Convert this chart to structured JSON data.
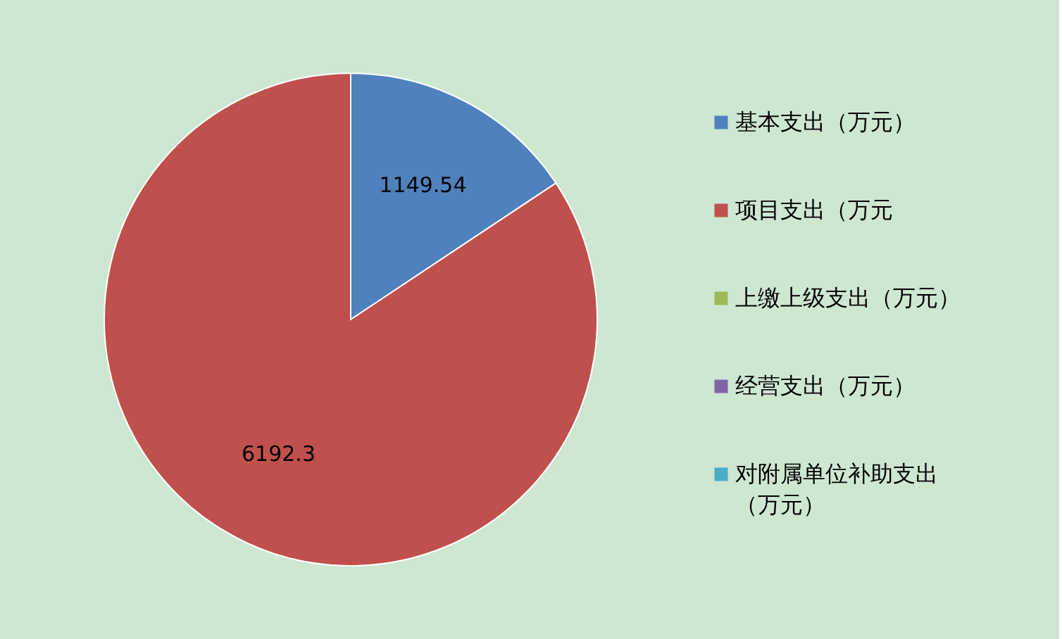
{
  "chart_data": {
    "type": "pie",
    "categories": [
      "基本支出（万元）",
      "项目支出（万元",
      "上缴上级支出（万元）",
      "经营支出（万元）",
      "对附属单位补助支出（万元）"
    ],
    "values": [
      1149.54,
      6192.3,
      0,
      0,
      0
    ],
    "value_labels": [
      "1149.54",
      "6192.3",
      null,
      null,
      null
    ],
    "colors": [
      "#4f81bd",
      "#c0504d",
      "#9bbb59",
      "#8064a2",
      "#4bacc6"
    ],
    "legend": "right"
  }
}
